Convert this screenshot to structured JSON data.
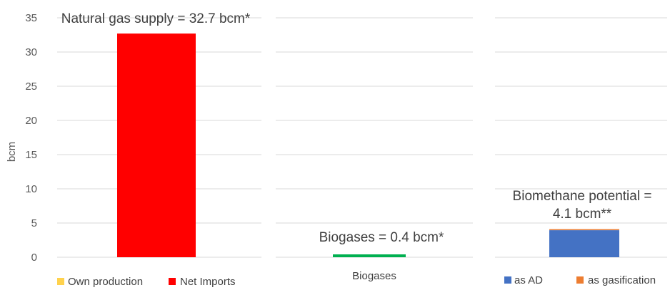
{
  "chart_data": [
    {
      "type": "bar",
      "stacked": true,
      "title": "",
      "ylabel": "bcm",
      "ylim": [
        0,
        35
      ],
      "yticks": [
        0,
        5,
        10,
        15,
        20,
        25,
        30,
        35
      ],
      "grid": true,
      "categories": [
        ""
      ],
      "series": [
        {
          "name": "Own production",
          "color": "#FFD24D",
          "values": [
            0
          ]
        },
        {
          "name": "Net Imports",
          "color": "#FF0000",
          "values": [
            32.7
          ]
        }
      ],
      "annotation": "Natural gas supply = 32.7 bcm*",
      "legend_position": "bottom"
    },
    {
      "type": "bar",
      "title": "",
      "ylim": [
        0,
        35
      ],
      "grid": true,
      "categories": [
        "Biogases"
      ],
      "series": [
        {
          "name": "",
          "color": "#00B050",
          "values": [
            0.4
          ]
        }
      ],
      "annotation": "Biogases = 0.4 bcm*"
    },
    {
      "type": "bar",
      "stacked": true,
      "title": "",
      "ylim": [
        0,
        35
      ],
      "grid": true,
      "categories": [
        ""
      ],
      "series": [
        {
          "name": "as AD",
          "color": "#4472C4",
          "values": [
            3.95
          ]
        },
        {
          "name": "as gasification",
          "color": "#ED7D31",
          "values": [
            0.15
          ]
        }
      ],
      "annotation_lines": [
        "Biomethane potential =",
        "4.1 bcm**"
      ],
      "legend_position": "bottom"
    }
  ]
}
